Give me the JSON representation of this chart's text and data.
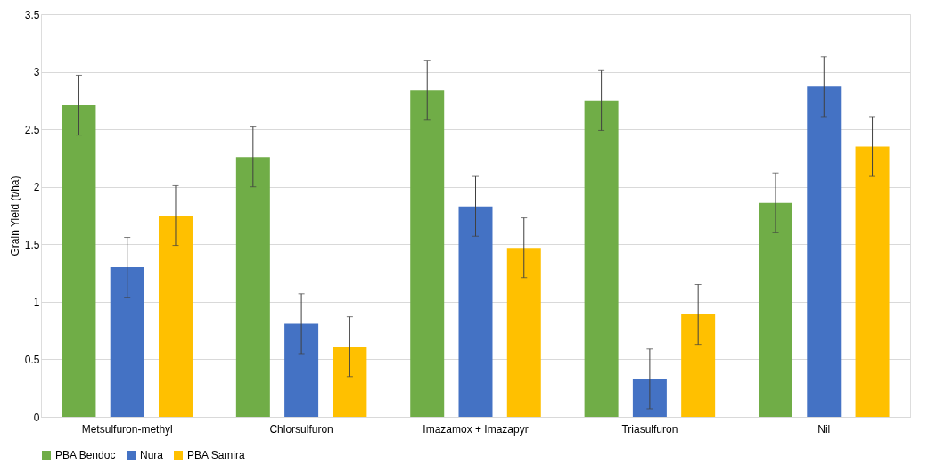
{
  "chart_data": {
    "type": "bar",
    "ylabel": "Grain Yield (t/ha)",
    "categories": [
      "Metsulfuron-methyl",
      "Chlorsulfuron",
      "Imazamox + Imazapyr",
      "Triasulfuron",
      "Nil"
    ],
    "series": [
      {
        "name": "PBA Bendoc",
        "color": "#70ad47",
        "values": [
          2.71,
          2.26,
          2.84,
          2.75,
          1.86
        ],
        "errors": [
          0.26,
          0.26,
          0.26,
          0.26,
          0.26
        ]
      },
      {
        "name": "Nura",
        "color": "#4472c4",
        "values": [
          1.3,
          0.81,
          1.83,
          0.33,
          2.87
        ],
        "errors": [
          0.26,
          0.26,
          0.26,
          0.26,
          0.26
        ]
      },
      {
        "name": "PBA Samira",
        "color": "#ffc000",
        "values": [
          1.75,
          0.61,
          1.47,
          0.89,
          2.35
        ],
        "errors": [
          0.26,
          0.26,
          0.26,
          0.26,
          0.26
        ]
      }
    ],
    "ylim": [
      0,
      3.5
    ],
    "yticks": [
      0,
      0.5,
      1,
      1.5,
      2,
      2.5,
      3,
      3.5
    ],
    "grid": "y",
    "legend": "bottom"
  }
}
